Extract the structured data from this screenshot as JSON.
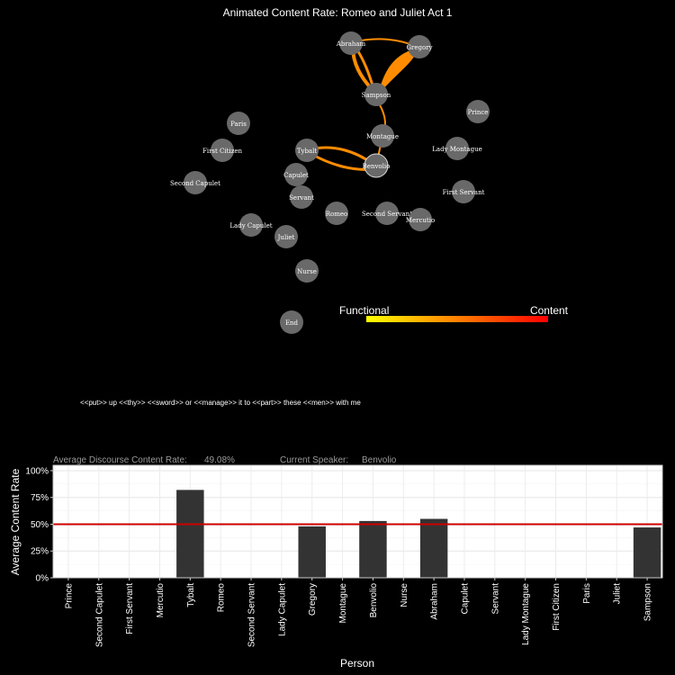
{
  "network": {
    "title": "Animated Content Rate: Romeo and Juliet Act 1",
    "nodes": [
      {
        "label": "Abraham"
      },
      {
        "label": "Gregory"
      },
      {
        "label": "Sampson"
      },
      {
        "label": "Paris"
      },
      {
        "label": "Prince"
      },
      {
        "label": "Montague"
      },
      {
        "label": "First Citizen"
      },
      {
        "label": "Tybalt"
      },
      {
        "label": "Lady Montague"
      },
      {
        "label": "Benvolio"
      },
      {
        "label": "Capulet"
      },
      {
        "label": "Second Capulet"
      },
      {
        "label": "First Servant"
      },
      {
        "label": "Servant"
      },
      {
        "label": "Romeo"
      },
      {
        "label": "Second Servant"
      },
      {
        "label": "Mercutio"
      },
      {
        "label": "Lady Capulet"
      },
      {
        "label": "Juliet"
      },
      {
        "label": "Nurse"
      },
      {
        "label": "End"
      }
    ],
    "legend": {
      "low_label": "Functional",
      "high_label": "Content",
      "low_color": "#ffff00",
      "high_color": "#ff0000"
    },
    "edge_color": "#ff8c00",
    "node_color": "#696969"
  },
  "dialogue": {
    "line": "<<put>> up <<thy>> <<sword>> or <<manage>> it to <<part>> these <<men>> with me"
  },
  "chart_data": {
    "type": "bar",
    "avg_label": "Average Discourse Content Rate:",
    "avg_value": "49.08%",
    "speaker_label": "Current Speaker:",
    "speaker_value": "Benvolio",
    "xlabel": "Person",
    "ylabel": "Average Content Rate",
    "ylim": [
      0,
      1.05
    ],
    "yticks": [
      0,
      0.25,
      0.5,
      0.75,
      1.0
    ],
    "ytick_labels": [
      "0%",
      "25%",
      "50%",
      "75%",
      "100%"
    ],
    "reference_line": 0.5,
    "reference_color": "#cc0000",
    "bar_color": "#333333",
    "categories": [
      "Prince",
      "Second Capulet",
      "First Servant",
      "Mercutio",
      "Tybalt",
      "Romeo",
      "Second Servant",
      "Lady Capulet",
      "Gregory",
      "Montague",
      "Benvolio",
      "Nurse",
      "Abraham",
      "Capulet",
      "Servant",
      "Lady Montague",
      "First Citizen",
      "Paris",
      "Juliet",
      "Sampson"
    ],
    "values": [
      null,
      null,
      null,
      null,
      0.82,
      null,
      null,
      null,
      0.48,
      null,
      0.53,
      null,
      0.55,
      null,
      null,
      null,
      null,
      null,
      null,
      0.47
    ]
  }
}
